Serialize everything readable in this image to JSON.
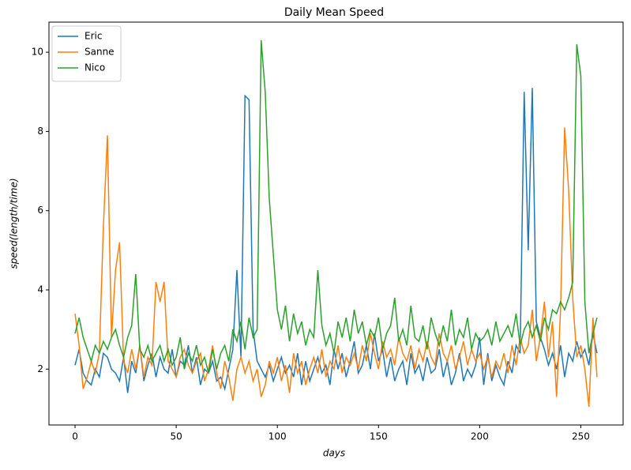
{
  "chart_data": {
    "type": "line",
    "title": "Daily Mean Speed",
    "xlabel": "days",
    "ylabel": "speed(length/time)",
    "x": [
      0,
      2,
      4,
      6,
      8,
      10,
      12,
      14,
      16,
      18,
      20,
      22,
      24,
      26,
      28,
      30,
      32,
      34,
      36,
      38,
      40,
      42,
      44,
      46,
      48,
      50,
      52,
      54,
      56,
      58,
      60,
      62,
      64,
      66,
      68,
      70,
      72,
      74,
      76,
      78,
      80,
      82,
      84,
      86,
      88,
      90,
      92,
      94,
      96,
      98,
      100,
      102,
      104,
      106,
      108,
      110,
      112,
      114,
      116,
      118,
      120,
      122,
      124,
      126,
      128,
      130,
      132,
      134,
      136,
      138,
      140,
      142,
      144,
      146,
      148,
      150,
      152,
      154,
      156,
      158,
      160,
      162,
      164,
      166,
      168,
      170,
      172,
      174,
      176,
      178,
      180,
      182,
      184,
      186,
      188,
      190,
      192,
      194,
      196,
      198,
      200,
      202,
      204,
      206,
      208,
      210,
      212,
      214,
      216,
      218,
      220,
      222,
      224,
      226,
      228,
      230,
      232,
      234,
      236,
      238,
      240,
      242,
      244,
      246,
      248,
      250,
      252,
      254,
      256,
      258
    ],
    "series": [
      {
        "name": "Eric",
        "color": "#1f77b4",
        "values": [
          2.1,
          2.5,
          1.9,
          1.7,
          1.6,
          2.0,
          1.8,
          2.4,
          2.3,
          2.0,
          1.9,
          1.7,
          2.3,
          1.4,
          2.2,
          1.9,
          2.6,
          1.7,
          2.1,
          2.4,
          1.8,
          2.3,
          2.0,
          1.9,
          2.5,
          1.8,
          2.2,
          2.1,
          2.6,
          1.9,
          2.3,
          1.6,
          2.0,
          1.9,
          2.2,
          1.7,
          1.8,
          1.5,
          2.0,
          2.5,
          4.5,
          2.3,
          8.9,
          8.8,
          3.0,
          2.2,
          2.0,
          1.8,
          2.1,
          1.7,
          2.0,
          2.3,
          1.9,
          2.1,
          1.8,
          2.4,
          1.6,
          2.2,
          1.7,
          2.0,
          2.3,
          1.9,
          2.1,
          1.6,
          2.5,
          2.0,
          2.4,
          1.8,
          2.2,
          2.7,
          1.9,
          2.1,
          2.6,
          2.0,
          2.9,
          2.2,
          2.5,
          1.8,
          2.3,
          1.7,
          2.0,
          2.2,
          1.6,
          2.4,
          1.9,
          2.1,
          1.7,
          2.3,
          1.9,
          2.0,
          2.5,
          1.8,
          2.2,
          1.6,
          1.9,
          2.4,
          1.7,
          2.0,
          1.8,
          2.1,
          2.8,
          1.6,
          2.4,
          1.7,
          2.1,
          1.8,
          1.6,
          2.2,
          1.9,
          2.6,
          2.4,
          9.0,
          5.0,
          9.1,
          3.2,
          2.8,
          2.5,
          2.1,
          2.4,
          2.0,
          2.6,
          1.8,
          2.4,
          2.2,
          2.7,
          2.3,
          2.5,
          2.1,
          2.9,
          2.4
        ]
      },
      {
        "name": "Sanne",
        "color": "#ff7f0e",
        "values": [
          3.4,
          2.6,
          1.5,
          1.8,
          2.2,
          1.9,
          2.4,
          5.6,
          7.9,
          2.8,
          4.5,
          5.2,
          2.2,
          1.9,
          2.5,
          2.0,
          2.6,
          1.8,
          2.3,
          2.1,
          4.2,
          3.7,
          4.2,
          2.2,
          2.0,
          1.8,
          2.3,
          2.5,
          2.1,
          1.9,
          2.2,
          2.4,
          1.7,
          2.0,
          2.6,
          1.9,
          1.5,
          2.2,
          1.8,
          1.2,
          2.0,
          2.3,
          1.9,
          2.2,
          1.7,
          2.0,
          1.3,
          1.6,
          2.2,
          1.9,
          2.3,
          1.7,
          2.1,
          1.4,
          2.4,
          1.9,
          2.2,
          1.6,
          2.0,
          2.3,
          1.9,
          2.5,
          1.8,
          2.2,
          2.0,
          2.6,
          1.9,
          2.3,
          2.1,
          2.4,
          2.0,
          2.6,
          2.2,
          2.9,
          2.4,
          2.0,
          2.7,
          2.3,
          2.5,
          2.1,
          2.8,
          2.4,
          2.2,
          2.6,
          2.0,
          2.5,
          2.2,
          2.7,
          2.3,
          2.1,
          2.9,
          2.4,
          2.2,
          2.6,
          2.0,
          2.3,
          2.7,
          2.1,
          2.5,
          2.2,
          2.4,
          2.0,
          2.3,
          1.8,
          2.2,
          2.0,
          2.4,
          1.9,
          2.6,
          2.1,
          2.8,
          2.4,
          2.6,
          3.5,
          2.2,
          2.8,
          3.7,
          2.3,
          3.2,
          1.3,
          3.5,
          8.1,
          6.5,
          3.8,
          2.3,
          2.6,
          2.0,
          1.05,
          3.3,
          1.8
        ]
      },
      {
        "name": "Nico",
        "color": "#2ca02c",
        "values": [
          2.9,
          3.3,
          2.8,
          2.5,
          2.2,
          2.6,
          2.4,
          2.7,
          2.5,
          2.8,
          3.0,
          2.6,
          2.3,
          2.8,
          3.1,
          4.4,
          2.5,
          2.3,
          2.6,
          2.2,
          2.4,
          2.6,
          2.2,
          2.5,
          2.1,
          2.3,
          2.8,
          2.0,
          2.4,
          2.2,
          2.6,
          2.1,
          2.3,
          1.9,
          2.5,
          2.0,
          2.4,
          2.6,
          2.2,
          3.0,
          2.7,
          3.2,
          2.5,
          3.3,
          2.8,
          3.0,
          10.3,
          9.0,
          6.3,
          4.9,
          3.5,
          3.0,
          3.6,
          2.7,
          3.4,
          2.9,
          3.2,
          2.6,
          3.0,
          2.8,
          4.5,
          3.1,
          2.6,
          2.9,
          2.4,
          3.2,
          2.8,
          3.3,
          2.7,
          3.5,
          2.9,
          3.2,
          2.6,
          3.0,
          2.8,
          3.3,
          2.5,
          2.9,
          3.1,
          3.8,
          2.7,
          3.0,
          2.6,
          3.6,
          2.8,
          2.7,
          3.1,
          2.5,
          3.3,
          2.9,
          2.6,
          3.1,
          2.7,
          3.5,
          2.6,
          3.0,
          2.8,
          3.3,
          2.5,
          2.9,
          2.7,
          2.8,
          3.0,
          2.6,
          3.2,
          2.7,
          2.9,
          3.1,
          2.8,
          3.4,
          2.6,
          3.0,
          3.2,
          2.8,
          3.1,
          2.7,
          3.3,
          3.0,
          3.5,
          3.4,
          3.7,
          3.5,
          3.8,
          4.2,
          10.2,
          9.4,
          3.7,
          2.4,
          2.9,
          3.3
        ]
      }
    ],
    "xlim": [
      -12.9,
      270.9
    ],
    "ylim": [
      0.59,
      10.76
    ],
    "xticks": [
      0,
      50,
      100,
      150,
      200,
      250
    ],
    "yticks": [
      2,
      4,
      6,
      8,
      10
    ],
    "legend": "upper left"
  }
}
